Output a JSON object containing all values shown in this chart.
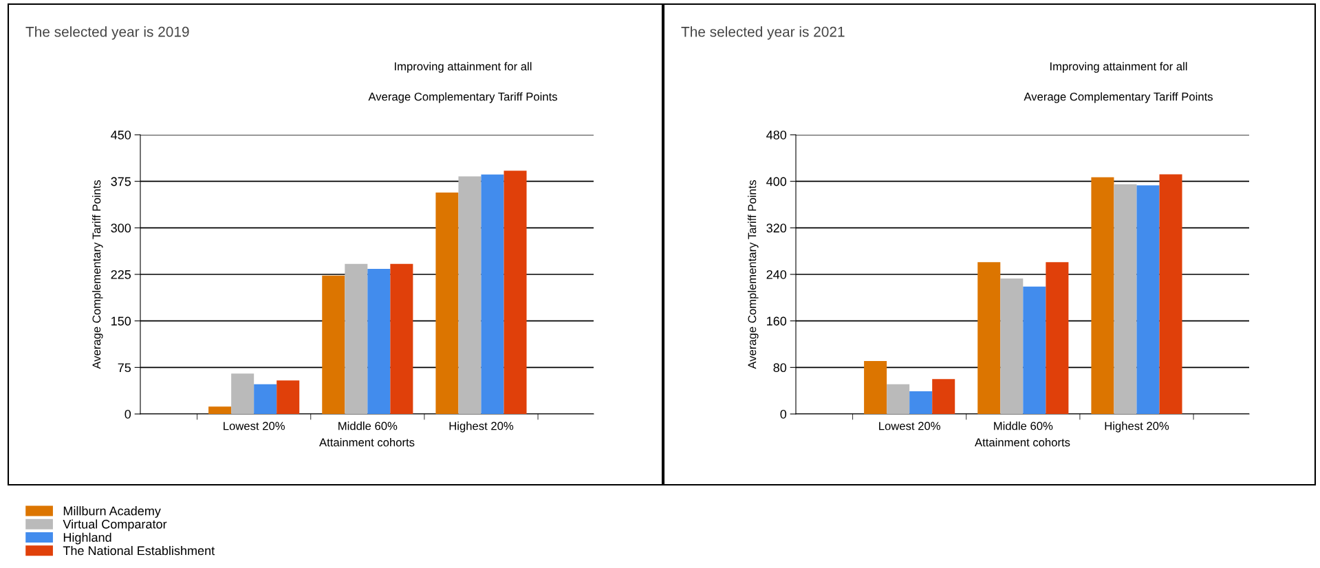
{
  "chart_data": [
    {
      "type": "bar",
      "title": "Improving attainment for all",
      "subtitle": "Average Complementary Tariff Points",
      "annotations": [
        "The selected year is 2019"
      ],
      "xlabel": "Attainment cohorts",
      "ylabel": "Average Complementary Tariff Points",
      "categories": [
        "Lowest 20%",
        "Middle 60%",
        "Highest 20%"
      ],
      "ylim": [
        0,
        450
      ],
      "yticks": [
        0,
        75,
        150,
        225,
        300,
        375,
        450
      ],
      "grid": "y",
      "legend": "bottom left",
      "series": [
        {
          "name": "Millburn Academy",
          "color": "#dc7500",
          "values": [
            12,
            223,
            357
          ]
        },
        {
          "name": "Virtual Comparator",
          "color": "#bababa",
          "values": [
            65,
            242,
            383
          ]
        },
        {
          "name": "Highland",
          "color": "#428ced",
          "values": [
            48,
            234,
            386
          ]
        },
        {
          "name": "The National Establishment",
          "color": "#e0400a",
          "values": [
            54,
            242,
            392
          ]
        }
      ]
    },
    {
      "type": "bar",
      "title": "Improving attainment for all",
      "subtitle": "Average Complementary Tariff Points",
      "annotations": [
        "The selected year is 2021"
      ],
      "xlabel": "Attainment cohorts",
      "ylabel": "Average Complementary Tariff Points",
      "categories": [
        "Lowest 20%",
        "Middle 60%",
        "Highest 20%"
      ],
      "ylim": [
        0,
        480
      ],
      "yticks": [
        0,
        80,
        160,
        240,
        320,
        400,
        480
      ],
      "grid": "y",
      "legend": false,
      "series": [
        {
          "name": "Millburn Academy",
          "color": "#dc7500",
          "values": [
            91,
            261,
            407
          ]
        },
        {
          "name": "Virtual Comparator",
          "color": "#bababa",
          "values": [
            51,
            233,
            395
          ]
        },
        {
          "name": "Highland",
          "color": "#428ced",
          "values": [
            39,
            219,
            393
          ]
        },
        {
          "name": "The National Establishment",
          "color": "#e0400a",
          "values": [
            60,
            261,
            412
          ]
        }
      ]
    }
  ]
}
